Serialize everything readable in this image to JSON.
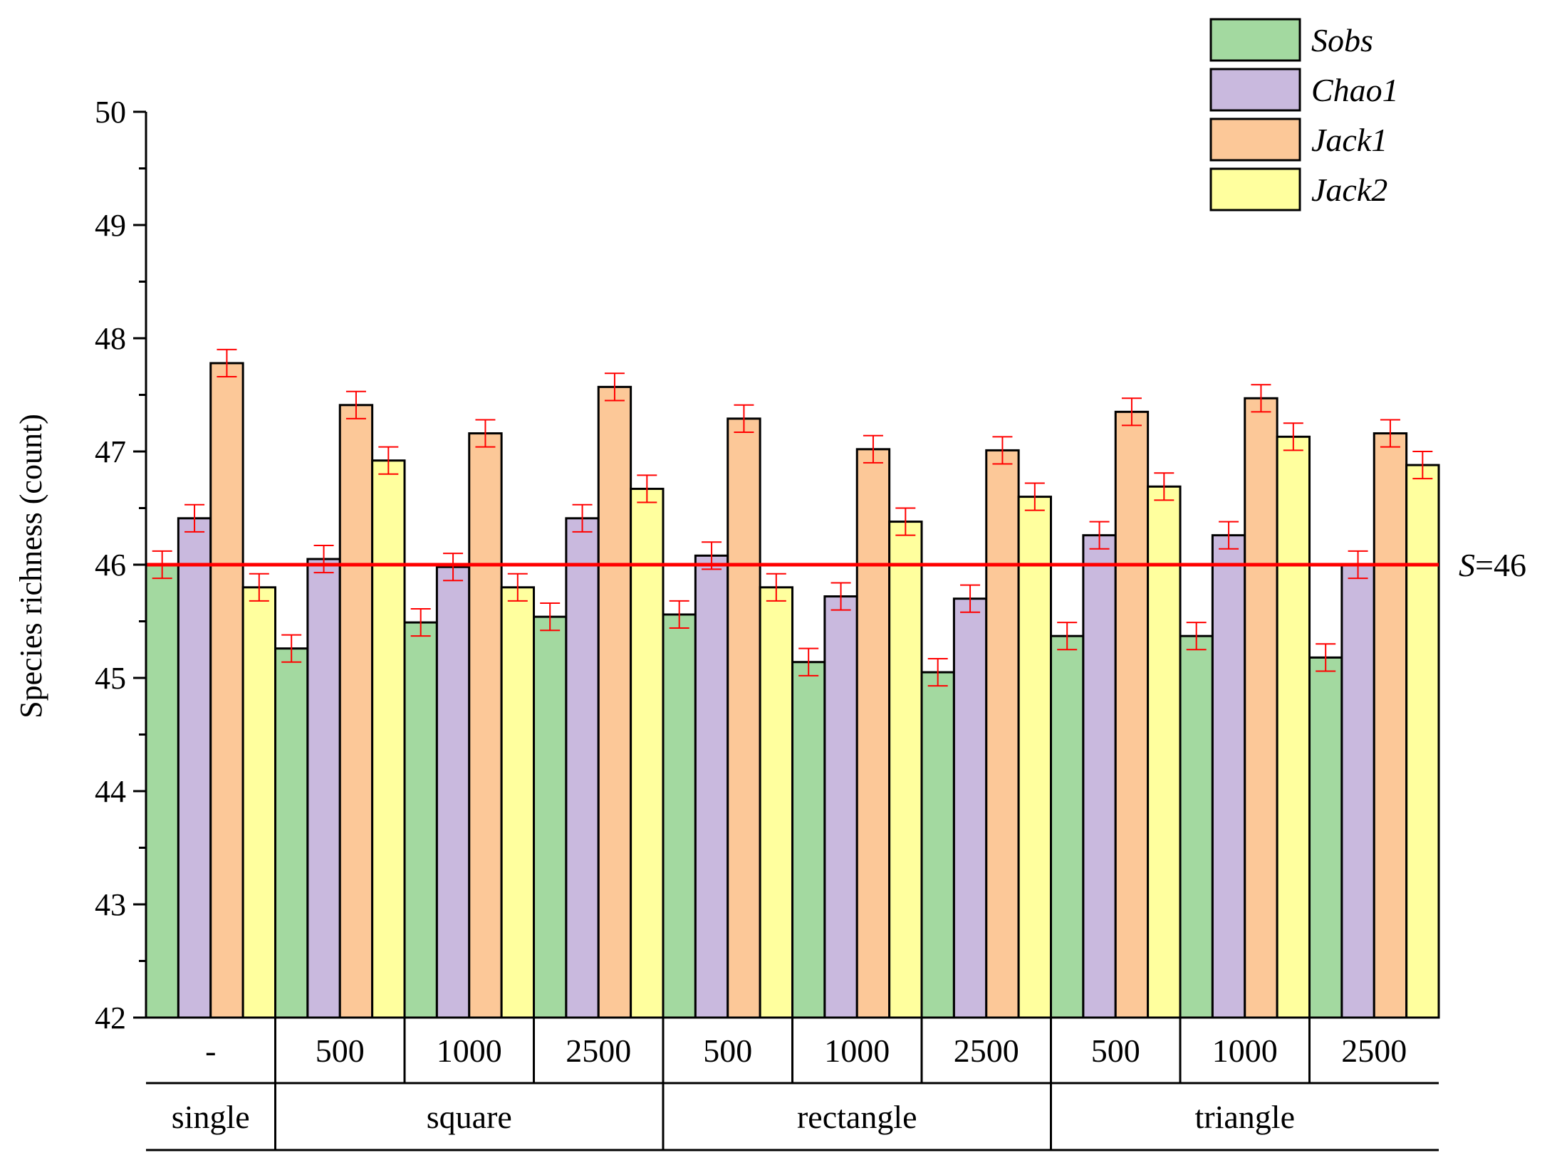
{
  "chart_data": {
    "type": "bar",
    "title": "",
    "xlabel": "",
    "ylabel": "Species richness (count)",
    "ylim": [
      42,
      50
    ],
    "yticks": [
      42,
      43,
      44,
      45,
      46,
      47,
      48,
      49,
      50
    ],
    "grid": false,
    "legend_position": "top-right",
    "categories": [
      "-",
      "500",
      "1000",
      "2500",
      "500",
      "1000",
      "2500",
      "500",
      "1000",
      "2500"
    ],
    "groups": [
      {
        "label": "single",
        "count": 1
      },
      {
        "label": "square",
        "count": 3
      },
      {
        "label": "rectangle",
        "count": 3
      },
      {
        "label": "triangle",
        "count": 3
      }
    ],
    "series": [
      {
        "name": "Sobs",
        "color": "#a3d9a0",
        "values": [
          46.0,
          45.26,
          45.49,
          45.54,
          45.56,
          45.14,
          45.05,
          45.37,
          45.37,
          45.18
        ],
        "errors": [
          0.12,
          0.12,
          0.12,
          0.12,
          0.12,
          0.12,
          0.12,
          0.12,
          0.12,
          0.12
        ]
      },
      {
        "name": "Chao1",
        "color": "#c9b9de",
        "values": [
          46.41,
          46.05,
          45.98,
          46.41,
          46.08,
          45.72,
          45.7,
          46.26,
          46.26,
          46.0
        ],
        "errors": [
          0.12,
          0.12,
          0.12,
          0.12,
          0.12,
          0.12,
          0.12,
          0.12,
          0.12,
          0.12
        ]
      },
      {
        "name": "Jack1",
        "color": "#fcc898",
        "values": [
          47.78,
          47.41,
          47.16,
          47.57,
          47.29,
          47.02,
          47.01,
          47.35,
          47.47,
          47.16
        ],
        "errors": [
          0.12,
          0.12,
          0.12,
          0.12,
          0.12,
          0.12,
          0.12,
          0.12,
          0.12,
          0.12
        ]
      },
      {
        "name": "Jack2",
        "color": "#ffff9e",
        "values": [
          45.8,
          46.92,
          45.8,
          46.67,
          45.8,
          46.38,
          46.6,
          46.69,
          47.13,
          46.88
        ],
        "errors": [
          0.12,
          0.12,
          0.12,
          0.12,
          0.12,
          0.12,
          0.12,
          0.12,
          0.12,
          0.12
        ]
      }
    ],
    "reference_line": {
      "value": 46,
      "label_var": "S",
      "label_rest": "=46",
      "color": "#ff0000"
    },
    "error_bar_color": "#ff0000"
  }
}
